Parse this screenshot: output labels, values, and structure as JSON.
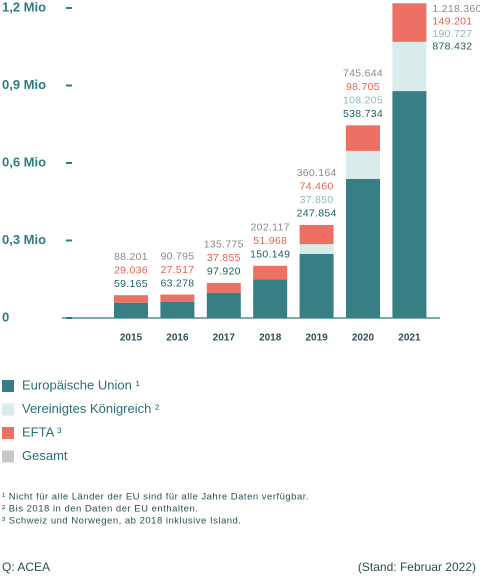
{
  "chart_data": {
    "type": "stacked_bar",
    "categories": [
      "2015",
      "2016",
      "2017",
      "2018",
      "2019",
      "2020",
      "2021"
    ],
    "series": [
      {
        "name": "Europäische Union ¹",
        "color": "#377f84",
        "label_color": "#1d5f63",
        "values": [
          59165,
          63278,
          97920,
          150149,
          247854,
          538734,
          878432
        ],
        "value_labels": [
          "59.165",
          "63.278",
          "97.920",
          "150.149",
          "247.854",
          "538.734",
          "878.432"
        ]
      },
      {
        "name": "Vereinigtes Königreich ²",
        "color": "#d9ebea",
        "label_color": "#8fb8bb",
        "values": [
          null,
          null,
          null,
          null,
          37850,
          108205,
          190727
        ],
        "value_labels": [
          null,
          null,
          null,
          null,
          "37.850",
          "108.205",
          "190.727"
        ]
      },
      {
        "name": "EFTA ³",
        "color": "#ec7063",
        "label_color": "#e8604f",
        "values": [
          29036,
          27517,
          37855,
          51968,
          74460,
          98705,
          149201
        ],
        "value_labels": [
          "29.036",
          "27.517",
          "37.855",
          "51.968",
          "74.460",
          "98.705",
          "149.201"
        ]
      }
    ],
    "totals": {
      "name": "Gesamt",
      "color": "#c8c8c8",
      "label_color": "#8a8a8a",
      "values": [
        88201,
        90795,
        135775,
        202117,
        360164,
        745644,
        1218360
      ],
      "value_labels": [
        "88.201",
        "90.795",
        "135.775",
        "202.117",
        "360.164",
        "745.644",
        "1.218.360"
      ]
    },
    "ylim": [
      0,
      1200000
    ],
    "yticks": [
      0,
      {
        "value": 300000,
        "label": "0,3 Mio"
      },
      {
        "value": 600000,
        "label": "0,6 Mio"
      },
      {
        "value": 900000,
        "label": "0,9 Mio"
      },
      {
        "value": 1200000,
        "label": "1,2 Mio"
      }
    ],
    "grid": false
  },
  "footnotes": [
    "¹ Nicht für alle Länder der EU sind für alle Jahre Daten verfügbar.",
    "² Bis 2018 in den Daten der EU enthalten.",
    "³ Schweiz und Norwegen, ab 2018 inklusive Island."
  ],
  "source": "Q: ACEA",
  "date_note": "(Stand: Februar 2022)"
}
